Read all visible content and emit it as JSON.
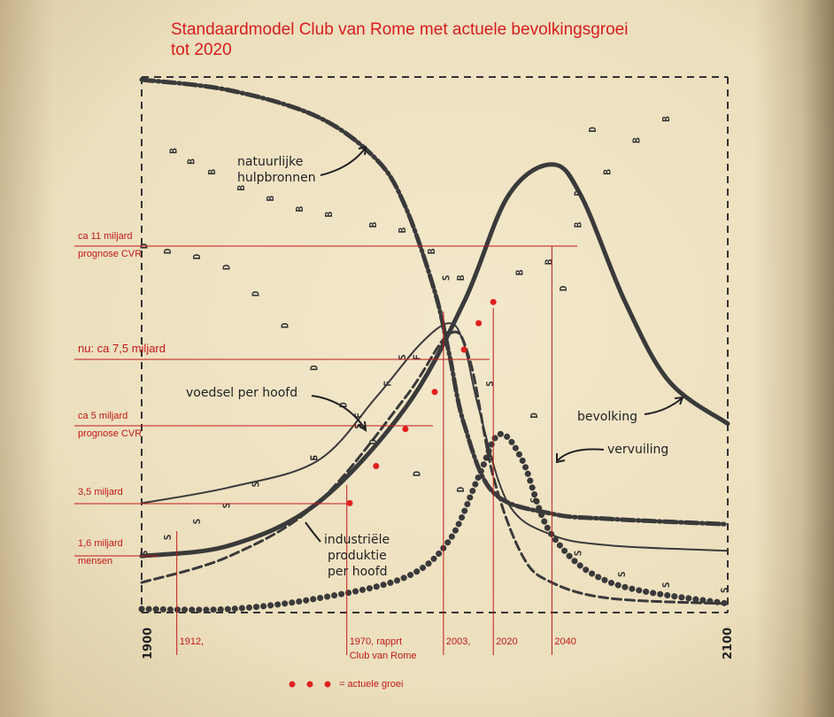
{
  "title_line1": "Standaardmodel Club van Rome met actuele bevolkingsgroei",
  "title_line2": "tot 2020",
  "chart_data": {
    "type": "line",
    "title": "Standaardmodel Club van Rome met actuele bevolkingsgroei tot 2020",
    "x_range": [
      1900,
      2100
    ],
    "x_axis_labels": [
      "1900",
      "2100"
    ],
    "year_markers": [
      {
        "year": 1912,
        "label": "1912,"
      },
      {
        "year": 1970,
        "label": "1970, rapprt",
        "label2": "Club van Rome"
      },
      {
        "year": 2003,
        "label": "2003,"
      },
      {
        "year": 2020,
        "label": "2020"
      },
      {
        "year": 2040,
        "label": "2040"
      }
    ],
    "population_levels": [
      {
        "label": "ca 11 miljard",
        "sublabel": "prognose CVR"
      },
      {
        "label": "nu: ca 7,5 miljard",
        "sublabel": ""
      },
      {
        "label": "ca 5 miljard",
        "sublabel": "prognose CVR"
      },
      {
        "label": "3,5 miljard",
        "sublabel": ""
      },
      {
        "label": "1,6 miljard",
        "sublabel": "mensen"
      }
    ],
    "series": [
      {
        "name": "natuurlijke hulpbronnen",
        "x": [
          1900,
          1930,
          1960,
          1980,
          1990,
          2000,
          2005,
          2010,
          2020,
          2040,
          2060,
          2100
        ],
        "y": [
          1.0,
          0.98,
          0.93,
          0.85,
          0.76,
          0.6,
          0.48,
          0.35,
          0.22,
          0.18,
          0.17,
          0.16
        ]
      },
      {
        "name": "voedsel per hoofd",
        "x": [
          1900,
          1930,
          1960,
          1980,
          1995,
          2005,
          2010,
          2015,
          2025,
          2040,
          2060,
          2100
        ],
        "y": [
          0.2,
          0.23,
          0.28,
          0.4,
          0.5,
          0.54,
          0.5,
          0.38,
          0.2,
          0.14,
          0.12,
          0.11
        ]
      },
      {
        "name": "bevolking",
        "x": [
          1900,
          1930,
          1960,
          1990,
          2010,
          2025,
          2040,
          2050,
          2065,
          2080,
          2100
        ],
        "y": [
          0.1,
          0.12,
          0.2,
          0.38,
          0.58,
          0.78,
          0.84,
          0.78,
          0.58,
          0.43,
          0.35
        ]
      },
      {
        "name": "industriële produktie per hoofd",
        "x": [
          1900,
          1930,
          1960,
          1990,
          2005,
          2012,
          2020,
          2030,
          2040,
          2060,
          2100
        ],
        "y": [
          0.05,
          0.1,
          0.2,
          0.4,
          0.52,
          0.47,
          0.25,
          0.1,
          0.05,
          0.02,
          0.01
        ]
      },
      {
        "name": "vervuiling",
        "x": [
          1900,
          1930,
          1960,
          1990,
          2005,
          2015,
          2022,
          2030,
          2040,
          2060,
          2100
        ],
        "y": [
          0.0,
          0.0,
          0.02,
          0.06,
          0.13,
          0.25,
          0.33,
          0.28,
          0.14,
          0.05,
          0.01
        ]
      },
      {
        "name": "actuele groei",
        "x": [
          1971,
          1980,
          1990,
          2000,
          2010,
          2015,
          2020
        ],
        "y": [
          0.2,
          0.27,
          0.34,
          0.41,
          0.49,
          0.54,
          0.58
        ]
      }
    ],
    "annotations": [
      "natuurlijke",
      "hulpbronnen",
      "voedsel per hoofd",
      "bevolking",
      "vervuiling",
      "industriële",
      "produktie",
      "per hoofd"
    ],
    "legend": {
      "label": "= actuele groei",
      "color": "#e02020",
      "position": "bottom-center"
    },
    "colors": {
      "curves": "#3a3a3a",
      "annotation": "#c01818",
      "title": "#d81c1c"
    }
  }
}
